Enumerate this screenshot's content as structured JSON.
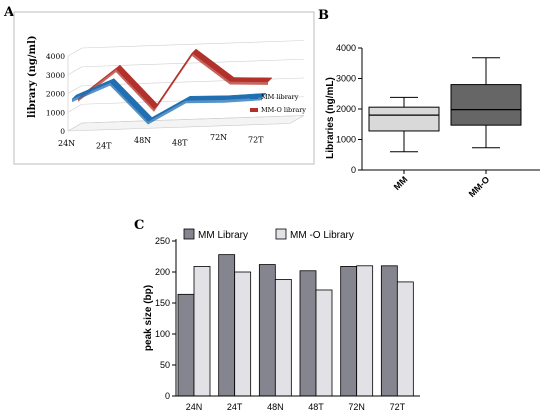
{
  "panels": {
    "a": "A",
    "b": "B",
    "c": "C"
  },
  "colors": {
    "mm_3d": "#1f6fb2",
    "mmo_3d": "#b3312b",
    "box_mm": "#d9d9d9",
    "box_mmo": "#666666",
    "bar_mm": "#85858f",
    "bar_mmo": "#e1e1e6"
  },
  "chart_data": [
    {
      "panel": "A",
      "type": "line",
      "three_d": true,
      "categories": [
        "24N",
        "24T",
        "48N",
        "48T",
        "72N",
        "72T"
      ],
      "ylabel": "library (ng/ml)",
      "ylim": [
        0,
        4000
      ],
      "yticks": [
        "4000",
        "3000",
        "2000",
        "1000",
        "0"
      ],
      "series": [
        {
          "name": "MM library",
          "values": [
            1700,
            2500,
            350,
            1400,
            1350,
            1400
          ]
        },
        {
          "name": "MM-O library",
          "values": [
            1400,
            2900,
            700,
            3600,
            2000,
            1900
          ]
        }
      ]
    },
    {
      "panel": "B",
      "type": "box",
      "categories": [
        "MM",
        "MM-O"
      ],
      "ylabel": "Libraries (ng/mL)",
      "ylim": [
        0,
        4000
      ],
      "yticks": [
        "0",
        "1000",
        "2000",
        "3000",
        "4000"
      ],
      "boxes": [
        {
          "name": "MM",
          "min": 600,
          "q1": 1280,
          "median": 1800,
          "q3": 2060,
          "max": 2380
        },
        {
          "name": "MM-O",
          "min": 730,
          "q1": 1470,
          "median": 1980,
          "q3": 2800,
          "max": 3680
        }
      ]
    },
    {
      "panel": "C",
      "type": "bar",
      "categories": [
        "24N",
        "24T",
        "48N",
        "48T",
        "72N",
        "72T"
      ],
      "ylabel": "peak size (bp)",
      "ylim": [
        0,
        250
      ],
      "yticks": [
        "0",
        "50",
        "100",
        "150",
        "200",
        "250"
      ],
      "series": [
        {
          "name": "MM Library",
          "values": [
            164,
            228,
            212,
            202,
            209,
            210
          ]
        },
        {
          "name": "MM -O Library",
          "values": [
            209,
            200,
            188,
            171,
            210,
            184
          ]
        }
      ]
    }
  ]
}
